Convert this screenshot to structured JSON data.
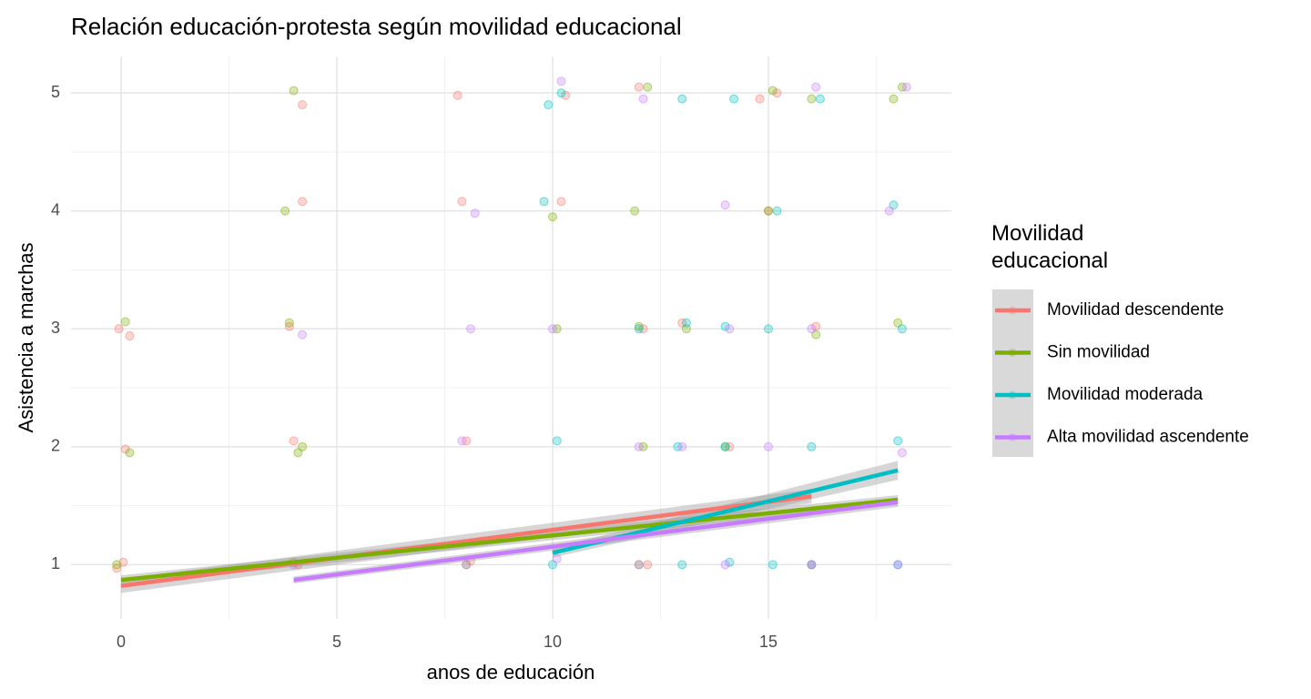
{
  "chart_data": {
    "type": "scatter",
    "title": "Relación educación-protesta según movilidad educacional",
    "x_label": "anos de educación",
    "y_label": "Asistencia a marchas",
    "legend_title": "Movilidad\neducacional",
    "legend_position": "right",
    "grid": true,
    "xlim": [
      -1.16,
      19.24
    ],
    "ylim": [
      0.54,
      5.31
    ],
    "xticks": [
      0,
      5,
      10,
      15
    ],
    "yticks": [
      1,
      2,
      3,
      4,
      5
    ],
    "xminor": [
      2.5,
      7.5,
      12.5,
      17.5
    ],
    "yminor": [
      1.5,
      2.5,
      3.5,
      4.5
    ],
    "series": [
      {
        "name": "Movilidad descendente",
        "color": "#F8766D",
        "x": [
          0.05,
          -0.1,
          0.2,
          -0.05,
          4.1,
          3.9,
          4.2,
          8.1,
          7.9,
          10.2,
          12.1,
          13.0,
          14.1,
          15.2,
          16.0,
          0.1,
          4.0,
          8.0,
          12.0,
          15.0,
          4.2,
          7.8,
          10.3,
          14.8,
          12.2,
          16.1
        ],
        "values": [
          1.02,
          0.97,
          2.94,
          3.0,
          1.0,
          3.02,
          4.08,
          1.03,
          4.08,
          4.08,
          3.0,
          3.05,
          2.0,
          5.0,
          1.0,
          1.98,
          2.05,
          2.05,
          5.05,
          4.0,
          4.9,
          4.98,
          4.98,
          4.95,
          1.0,
          3.02
        ],
        "fit": {
          "x": [
            0,
            16
          ],
          "values": [
            0.82,
            1.58
          ],
          "lower": [
            0.76,
            1.52
          ],
          "upper": [
            0.88,
            1.64
          ]
        }
      },
      {
        "name": "Sin movilidad",
        "color": "#7CAE00",
        "x": [
          -0.1,
          0.1,
          4.0,
          3.8,
          4.2,
          3.9,
          4.0,
          8.0,
          10.1,
          12.0,
          11.9,
          12.2,
          13.1,
          14.0,
          15.1,
          16.0,
          18.1,
          18.0,
          17.9,
          0.2,
          4.1,
          10.0,
          12.1,
          15.0,
          16.1,
          12.0
        ],
        "values": [
          1.0,
          3.06,
          1.02,
          4.0,
          2.0,
          3.05,
          5.02,
          1.0,
          3.0,
          1.0,
          4.0,
          5.05,
          3.0,
          2.0,
          5.02,
          4.95,
          5.05,
          3.05,
          4.95,
          1.95,
          1.95,
          3.95,
          2.0,
          4.0,
          2.95,
          3.02
        ],
        "fit": {
          "x": [
            0,
            18
          ],
          "values": [
            0.87,
            1.55
          ],
          "lower": [
            0.83,
            1.51
          ],
          "upper": [
            0.91,
            1.59
          ]
        }
      },
      {
        "name": "Movilidad moderada",
        "color": "#00BFC4",
        "x": [
          10.0,
          10.1,
          9.9,
          12.0,
          13.0,
          13.1,
          14.0,
          14.2,
          15.0,
          15.1,
          16.0,
          16.2,
          18.0,
          18.1,
          17.9,
          10.2,
          12.9,
          14.0,
          15.2,
          16.0,
          18.0,
          9.8,
          13.0,
          14.1
        ],
        "values": [
          1.0,
          2.05,
          4.9,
          3.0,
          1.0,
          3.05,
          2.0,
          4.95,
          3.0,
          1.0,
          2.0,
          4.95,
          1.0,
          3.0,
          4.05,
          5.0,
          2.0,
          3.02,
          4.0,
          1.0,
          2.05,
          4.08,
          4.95,
          1.02
        ],
        "fit": {
          "x": [
            10,
            18
          ],
          "values": [
            1.1,
            1.8
          ],
          "lower": [
            1.06,
            1.72
          ],
          "upper": [
            1.14,
            1.88
          ]
        }
      },
      {
        "name": "Alta movilidad ascendente",
        "color": "#C77CFF",
        "x": [
          4.0,
          4.2,
          8.0,
          8.1,
          7.9,
          10.0,
          10.1,
          12.0,
          12.1,
          13.0,
          14.0,
          14.1,
          15.0,
          16.0,
          16.1,
          18.0,
          18.2,
          17.8,
          8.2,
          10.2,
          14.0,
          16.0,
          18.1,
          12.0
        ],
        "values": [
          1.0,
          2.95,
          1.0,
          3.0,
          2.05,
          3.0,
          1.05,
          1.0,
          4.95,
          2.0,
          1.0,
          3.0,
          2.0,
          3.0,
          5.05,
          1.0,
          5.05,
          4.0,
          3.98,
          5.1,
          4.05,
          1.0,
          1.95,
          2.0
        ],
        "fit": {
          "x": [
            4,
            18
          ],
          "values": [
            0.87,
            1.53
          ],
          "lower": [
            0.84,
            1.49
          ],
          "upper": [
            0.9,
            1.57
          ]
        }
      }
    ]
  }
}
